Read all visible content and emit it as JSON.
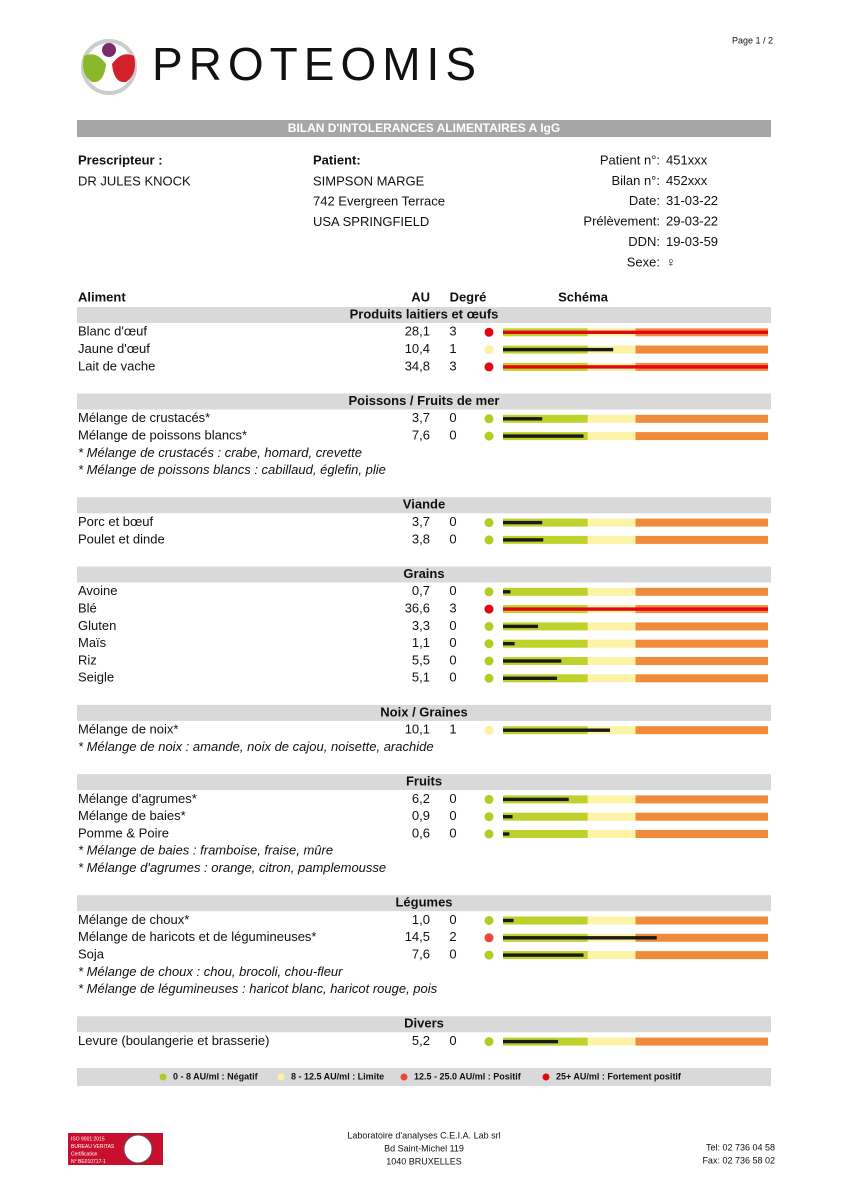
{
  "header": {
    "page": "Page 1 / 2",
    "brand": "PROTEOMIS",
    "title": "BILAN D'INTOLERANCES ALIMENTAIRES A IgG"
  },
  "prescriber": {
    "label": "Prescripteur :",
    "name": "DR JULES KNOCK"
  },
  "patient": {
    "label": "Patient:",
    "lines": [
      "SIMPSON MARGE",
      "742 Evergreen Terrace",
      "USA SPRINGFIELD"
    ]
  },
  "details": [
    {
      "label": "Patient n°:",
      "value": "451xxx"
    },
    {
      "label": "Bilan n°:",
      "value": "452xxx"
    },
    {
      "label": "Date:",
      "value": "31-03-22"
    },
    {
      "label": "Prélèvement:",
      "value": "29-03-22"
    },
    {
      "label": "DDN:",
      "value": "19-03-59"
    },
    {
      "label": "Sexe:",
      "value": "♀"
    }
  ],
  "table": {
    "columns": [
      "Aliment",
      "AU",
      "Degré",
      "Schéma"
    ],
    "sections": [
      {
        "name": "Produits laitiers et œufs",
        "rows": [
          {
            "food": "Blanc d'œuf",
            "au": {
              "value": 28.1,
              "label": "28,1"
            },
            "degree": 3
          },
          {
            "food": "Jaune d'œuf",
            "au": {
              "value": 10.4,
              "label": "10,4"
            },
            "degree": 1
          },
          {
            "food": "Lait de vache",
            "au": {
              "value": 34.8,
              "label": "34,8"
            },
            "degree": 3
          }
        ],
        "notes": []
      },
      {
        "name": "Poissons / Fruits de mer",
        "rows": [
          {
            "food": "Mélange de crustacés*",
            "au": {
              "value": 3.7,
              "label": "3,7"
            },
            "degree": 0
          },
          {
            "food": "Mélange de poissons blancs*",
            "au": {
              "value": 7.6,
              "label": "7,6"
            },
            "degree": 0
          }
        ],
        "notes": [
          "* Mélange de crustacés : crabe, homard, crevette",
          "* Mélange de poissons blancs : cabillaud, églefin, plie"
        ]
      },
      {
        "name": "Viande",
        "rows": [
          {
            "food": "Porc et bœuf",
            "au": {
              "value": 3.7,
              "label": "3,7"
            },
            "degree": 0
          },
          {
            "food": "Poulet et dinde",
            "au": {
              "value": 3.8,
              "label": "3,8"
            },
            "degree": 0
          }
        ],
        "notes": []
      },
      {
        "name": "Grains",
        "rows": [
          {
            "food": "Avoine",
            "au": {
              "value": 0.7,
              "label": "0,7"
            },
            "degree": 0
          },
          {
            "food": "Blé",
            "au": {
              "value": 36.6,
              "label": "36,6"
            },
            "degree": 3
          },
          {
            "food": "Gluten",
            "au": {
              "value": 3.3,
              "label": "3,3"
            },
            "degree": 0
          },
          {
            "food": "Maïs",
            "au": {
              "value": 1.1,
              "label": "1,1"
            },
            "degree": 0
          },
          {
            "food": "Riz",
            "au": {
              "value": 5.5,
              "label": "5,5"
            },
            "degree": 0
          },
          {
            "food": "Seigle",
            "au": {
              "value": 5.1,
              "label": "5,1"
            },
            "degree": 0
          }
        ],
        "notes": []
      },
      {
        "name": "Noix / Graines",
        "rows": [
          {
            "food": "Mélange de noix*",
            "au": {
              "value": 10.1,
              "label": "10,1"
            },
            "degree": 1
          }
        ],
        "notes": [
          "* Mélange de noix : amande, noix de cajou, noisette, arachide"
        ]
      },
      {
        "name": "Fruits",
        "rows": [
          {
            "food": "Mélange d'agrumes*",
            "au": {
              "value": 6.2,
              "label": "6,2"
            },
            "degree": 0
          },
          {
            "food": "Mélange de baies*",
            "au": {
              "value": 0.9,
              "label": "0,9"
            },
            "degree": 0
          },
          {
            "food": "Pomme & Poire",
            "au": {
              "value": 0.6,
              "label": "0,6"
            },
            "degree": 0
          }
        ],
        "notes": [
          "* Mélange de baies : framboise, fraise, mûre",
          "* Mélange d'agrumes : orange, citron, pamplemousse"
        ]
      },
      {
        "name": "Légumes",
        "rows": [
          {
            "food": "Mélange de choux*",
            "au": {
              "value": 1.0,
              "label": "1,0"
            },
            "degree": 0
          },
          {
            "food": "Mélange de haricots et de légumineuses*",
            "au": {
              "value": 14.5,
              "label": "14,5"
            },
            "degree": 2
          },
          {
            "food": "Soja",
            "au": {
              "value": 7.6,
              "label": "7,6"
            },
            "degree": 0
          }
        ],
        "notes": [
          "* Mélange de choux : chou, brocoli, chou-fleur",
          "* Mélange de légumineuses : haricot blanc, haricot rouge, pois"
        ]
      },
      {
        "name": "Divers",
        "rows": [
          {
            "food": "Levure (boulangerie et brasserie)",
            "au": {
              "value": 5.2,
              "label": "5,2"
            },
            "degree": 0
          }
        ],
        "notes": []
      }
    ]
  },
  "schema": {
    "bands": [
      {
        "to": 8,
        "color": "#bfd22b"
      },
      {
        "to": 12.5,
        "color": "#fdf3a6"
      },
      {
        "to": 25,
        "color": "#f28a3c"
      }
    ],
    "bar_color": "#1a1a1a"
  },
  "legend": [
    {
      "label": "0 - 8 AU/ml : Négatif",
      "color": "#b5cb22"
    },
    {
      "label": "8 - 12.5 AU/ml : Limite",
      "color": "#fdf0a0"
    },
    {
      "label": "12.5 - 25.0 AU/ml : Positif",
      "color": "#f0443a"
    },
    {
      "label": "25+ AU/ml : Fortement positif",
      "color": "#e30613"
    }
  ],
  "footer": {
    "lab": [
      "Laboratoire d'analyses C.E.I.A. Lab srl",
      "Bd Saint-Michel 119",
      "1040 BRUXELLES"
    ],
    "contact": [
      "Tel: 02 736 04 58",
      "Fax: 02 736 58 02"
    ],
    "cert": [
      "ISO 9001:2015",
      "BUREAU VERITAS",
      "Certification",
      "N° BE010717-1"
    ]
  }
}
